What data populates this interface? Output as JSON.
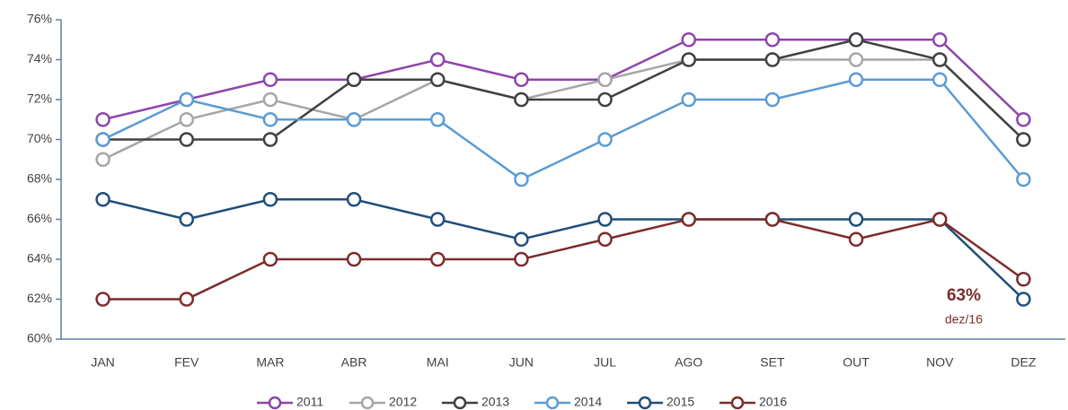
{
  "chart_data": {
    "type": "line",
    "categories": [
      "JAN",
      "FEV",
      "MAR",
      "ABR",
      "MAI",
      "JUN",
      "JUL",
      "AGO",
      "SET",
      "OUT",
      "NOV",
      "DEZ"
    ],
    "series": [
      {
        "name": "2011",
        "color": "#8e44ad",
        "values": [
          71,
          72,
          73,
          73,
          74,
          73,
          73,
          75,
          75,
          75,
          75,
          71
        ]
      },
      {
        "name": "2012",
        "color": "#a6a6a6",
        "values": [
          69,
          71,
          72,
          71,
          73,
          72,
          73,
          74,
          74,
          74,
          74,
          70
        ]
      },
      {
        "name": "2013",
        "color": "#404040",
        "values": [
          70,
          70,
          70,
          73,
          73,
          72,
          72,
          74,
          74,
          75,
          74,
          70
        ]
      },
      {
        "name": "2014",
        "color": "#5b9bd5",
        "values": [
          70,
          72,
          71,
          71,
          71,
          68,
          70,
          72,
          72,
          73,
          73,
          68
        ]
      },
      {
        "name": "2015",
        "color": "#1f4e79",
        "values": [
          67,
          66,
          67,
          67,
          66,
          65,
          66,
          66,
          66,
          66,
          66,
          62
        ]
      },
      {
        "name": "2016",
        "color": "#7b2c2c",
        "values": [
          62,
          62,
          64,
          64,
          64,
          64,
          65,
          66,
          66,
          65,
          66,
          63
        ]
      }
    ],
    "ylim": [
      60,
      76
    ],
    "yticks": [
      {
        "value": 60,
        "label": "60%"
      },
      {
        "value": 62,
        "label": "62%"
      },
      {
        "value": 64,
        "label": "64%"
      },
      {
        "value": 66,
        "label": "66%"
      },
      {
        "value": 68,
        "label": "68%"
      },
      {
        "value": 70,
        "label": "70%"
      },
      {
        "value": 72,
        "label": "72%"
      },
      {
        "value": 74,
        "label": "74%"
      },
      {
        "value": 76,
        "label": "76%"
      }
    ],
    "grid": false,
    "legend": "bottom",
    "annotations": [
      "63%",
      "dez/16"
    ]
  }
}
